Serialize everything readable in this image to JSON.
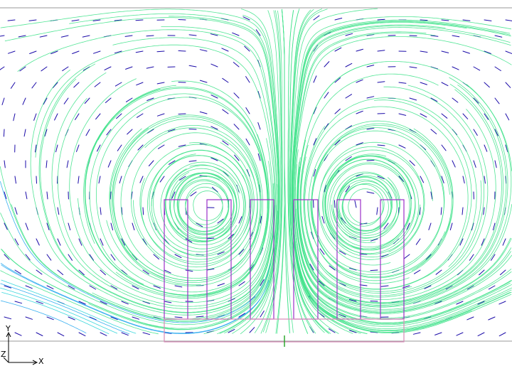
{
  "viewport": {
    "background": "#ffffff",
    "frame_color": "#9a9a9a"
  },
  "streamlines": {
    "palette": [
      "#1a0aa8",
      "#1f3ad6",
      "#1f6ee8",
      "#22a6ee",
      "#28d4d8",
      "#3fe28a"
    ]
  },
  "geometry": {
    "fin_color": "#9b2fc8",
    "base_color": "#d98ab8",
    "marker_color": "#21a321"
  },
  "axes_triad": {
    "y_label": "Y",
    "x_label": "X",
    "z_label": "Z",
    "line_color": "#000000"
  }
}
